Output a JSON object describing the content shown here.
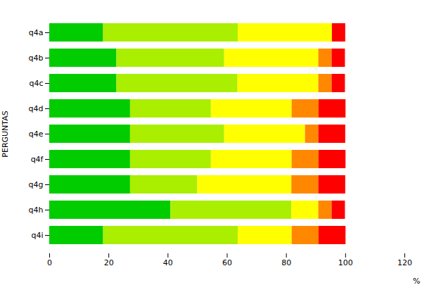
{
  "chart_data": {
    "type": "bar",
    "orientation": "horizontal",
    "stacked": true,
    "categories": [
      "q4a",
      "q4b",
      "q4c",
      "q4d",
      "q4e",
      "q4f",
      "q4g",
      "q4h",
      "q4i"
    ],
    "series": [
      {
        "color": "#00CC00",
        "values": [
          18.2,
          22.7,
          22.7,
          27.3,
          27.3,
          27.3,
          27.3,
          40.9,
          18.2
        ]
      },
      {
        "color": "#AAEE00",
        "values": [
          45.5,
          36.4,
          40.9,
          27.3,
          31.8,
          27.3,
          22.7,
          40.9,
          45.5
        ]
      },
      {
        "color": "#FFFF00",
        "values": [
          31.8,
          31.8,
          27.3,
          27.3,
          27.3,
          27.3,
          31.8,
          9.1,
          18.2
        ]
      },
      {
        "color": "#FF8800",
        "values": [
          0.0,
          4.5,
          4.5,
          9.1,
          4.5,
          9.1,
          9.1,
          4.5,
          9.1
        ]
      },
      {
        "color": "#FF0000",
        "values": [
          4.5,
          4.5,
          4.5,
          9.1,
          9.1,
          9.1,
          9.1,
          4.5,
          9.1
        ]
      }
    ],
    "xlabel": "%",
    "ylabel": "PERGUNTAS",
    "xlim": [
      0,
      120
    ],
    "xticks": [
      0,
      20,
      40,
      60,
      80,
      100,
      120
    ],
    "grid": false
  }
}
